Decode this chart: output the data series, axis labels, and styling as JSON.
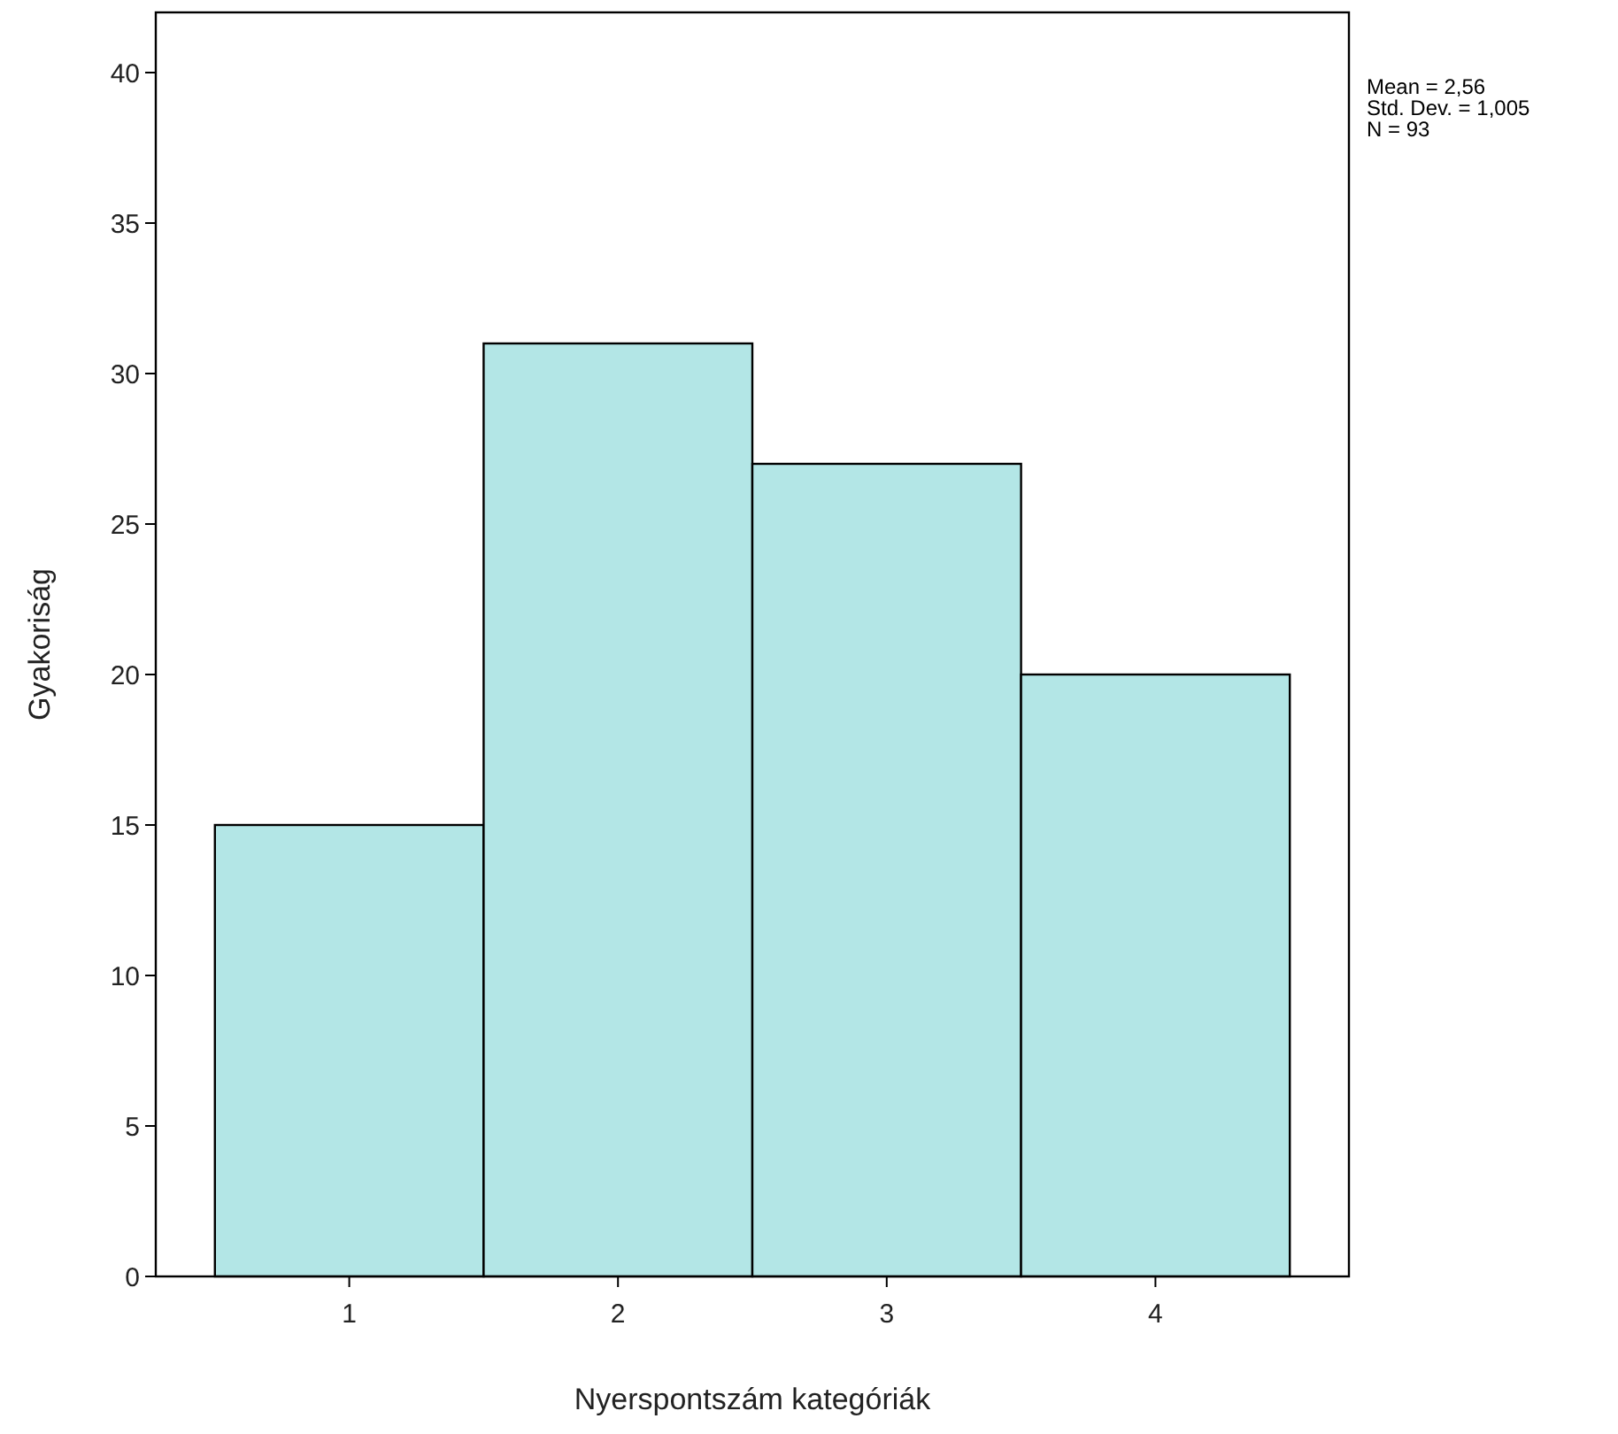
{
  "chart_data": {
    "type": "histogram",
    "xlabel": "Nyerspontszám kategóriák",
    "ylabel": "Gyakoriság",
    "bins": [
      0.5,
      1.5,
      2.5,
      3.5,
      4.5
    ],
    "values": [
      15,
      31,
      27,
      20
    ],
    "color": "#b3e6e6",
    "xlim": [
      0.28,
      4.72
    ],
    "ylim": [
      0,
      42
    ],
    "xticks": [
      1,
      2,
      3,
      4
    ],
    "yticks": [
      0,
      5,
      10,
      15,
      20,
      25,
      30,
      35,
      40
    ],
    "annotations": [
      "Mean = 2,56",
      "Std. Dev. = 1,005",
      "N = 93"
    ]
  }
}
